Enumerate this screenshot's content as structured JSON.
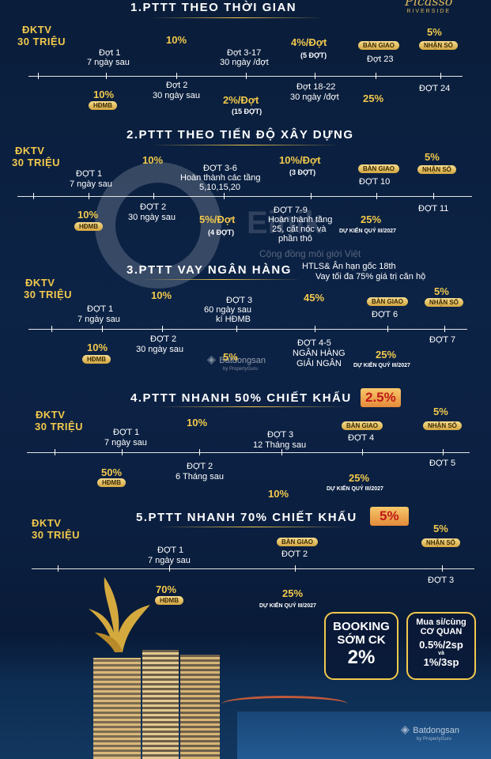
{
  "brand": {
    "name": "Picasso",
    "sub": "RIVERSIDE"
  },
  "s1": {
    "title": "1.PTTT THEO THỜI GIAN",
    "dktv": "ĐKTV",
    "dktv_val": "30 TRIỆU",
    "d1": "Đợt 1",
    "d1s": "7 ngày sau",
    "hdmb_pct": "10%",
    "hdmb": "HĐMB",
    "p10": "10%",
    "d2": "Đợt 2",
    "d2s": "30 ngày sau",
    "d317": "Đợt 3-17",
    "d317s": "30 ngày /đợt",
    "p2": "2%/Đợt",
    "p2s": "(15 ĐỢT)",
    "p4": "4%/Đợt",
    "p4s": "(5 ĐỢT)",
    "d1822": "Đợt 18-22",
    "d1822s": "30 ngày /đợt",
    "bg": "BÀN GIAO",
    "d23": "Đợt 23",
    "p25": "25%",
    "p5": "5%",
    "ns": "NHẬN SỔ",
    "d24": "ĐỢT 24"
  },
  "s2": {
    "title": "2.PTTT THEO TIẾN ĐỘ XÂY DỰNG",
    "dktv": "ĐKTV",
    "dktv_val": "30 TRIỆU",
    "d1": "ĐỢT 1",
    "d1s": "7 ngày sau",
    "hdmb_pct": "10%",
    "hdmb": "HĐMB",
    "p10": "10%",
    "d2": "ĐỢT 2",
    "d2s": "30 ngày sau",
    "d36": "ĐỢT 3-6",
    "d36s": "Hoàn thành các tầng",
    "d36s2": "5,10,15,20",
    "p5": "5%/Đợt",
    "p5s": "(4 ĐỢT)",
    "p10b": "10%/Đợt",
    "p10bs": "(3 ĐỢT)",
    "d79": "ĐỢT 7-9",
    "d79s": "Hoàn thành tầng",
    "d79s2": "25, cất nóc và",
    "d79s3": "phần thô",
    "bg": "BÀN GIAO",
    "d10": "ĐỢT 10",
    "p25": "25%",
    "dk": "DỰ KIẾN QUÝ III/2027",
    "pn": "5%",
    "ns": "NHẬN SỔ",
    "d11": "ĐỢT 11"
  },
  "s3": {
    "title": "3.PTTT VAY NGÂN HÀNG",
    "dktv": "ĐKTV",
    "dktv_val": "30 TRIỆU",
    "d1": "ĐỢT 1",
    "d1s": "7 ngày sau",
    "hdmb_pct": "10%",
    "hdmb": "HĐMB",
    "p10": "10%",
    "d2": "ĐỢT 2",
    "d2s": "30 ngày sau",
    "d3": "ĐỢT 3",
    "d3s": "60 ngày sau",
    "d3s2": "kí HĐMB",
    "p5": "5%",
    "htls": "HTLS& Ân hạn gốc 18th",
    "vay": "Vay tối đa 75% giá trị căn hộ",
    "p45": "45%",
    "d45": "ĐỢT 4-5",
    "d45s": "NGÂN HÀNG",
    "d45s2": "GIẢI NGÂN",
    "bg": "BÀN GIAO",
    "d6": "ĐỢT 6",
    "p25": "25%",
    "dk": "DỰ KIẾN QUÝ III/2027",
    "pn": "5%",
    "ns": "NHẬN SỔ",
    "d7": "ĐỢT 7"
  },
  "s4": {
    "title": "4.PTTT NHANH 50% CHIẾT KHẤU",
    "disc": "2.5%",
    "dktv": "ĐKTV",
    "dktv_val": "30 TRIỆU",
    "d1": "ĐỢT 1",
    "d1s": "7 ngày sau",
    "hdmb_pct": "50%",
    "hdmb": "HĐMB",
    "p10": "10%",
    "d2": "ĐỢT 2",
    "d2s": "6 Tháng sau",
    "d3": "ĐỢT 3",
    "d3s": "12 Tháng sau",
    "p10b": "10%",
    "bg": "BÀN GIAO",
    "d4": "ĐỢT 4",
    "p25": "25%",
    "dk": "DỰ KIẾN QUÝ III/2027",
    "pn": "5%",
    "ns": "NHẬN SỔ",
    "d5": "ĐỢT 5"
  },
  "s5": {
    "title": "5.PTTT NHANH 70% CHIẾT KHẤU",
    "disc": "5%",
    "dktv": "ĐKTV",
    "dktv_val": "30 TRIỆU",
    "d1": "ĐỢT 1",
    "d1s": "7 ngày sau",
    "hdmb_pct": "70%",
    "hdmb": "HĐMB",
    "bg": "BÀN GIAO",
    "d2": "ĐỢT 2",
    "p25": "25%",
    "dk": "DỰ KIẾN QUÝ III/2027",
    "pn": "5%",
    "ns": "NHẬN SỔ",
    "d3": "ĐỢT 3"
  },
  "booking": {
    "l1": "BOOKING",
    "l2": "SỚM CK",
    "l3": "2%"
  },
  "bulk": {
    "l1": "Mua sỉ/cùng",
    "l2": "CƠ QUAN",
    "l3": "0.5%/2sp",
    "l4": "và",
    "l5": "1%/3sp"
  },
  "watermark": {
    "e": "E",
    "brand": "Einik",
    "tagline": "Cộng đồng môi giới Việt",
    "bds": "Batdongsan",
    "bds_sub": "by PropertyGuru",
    "bds2": "Batdongsan",
    "bds2_sub": "by PropertyGuru"
  }
}
